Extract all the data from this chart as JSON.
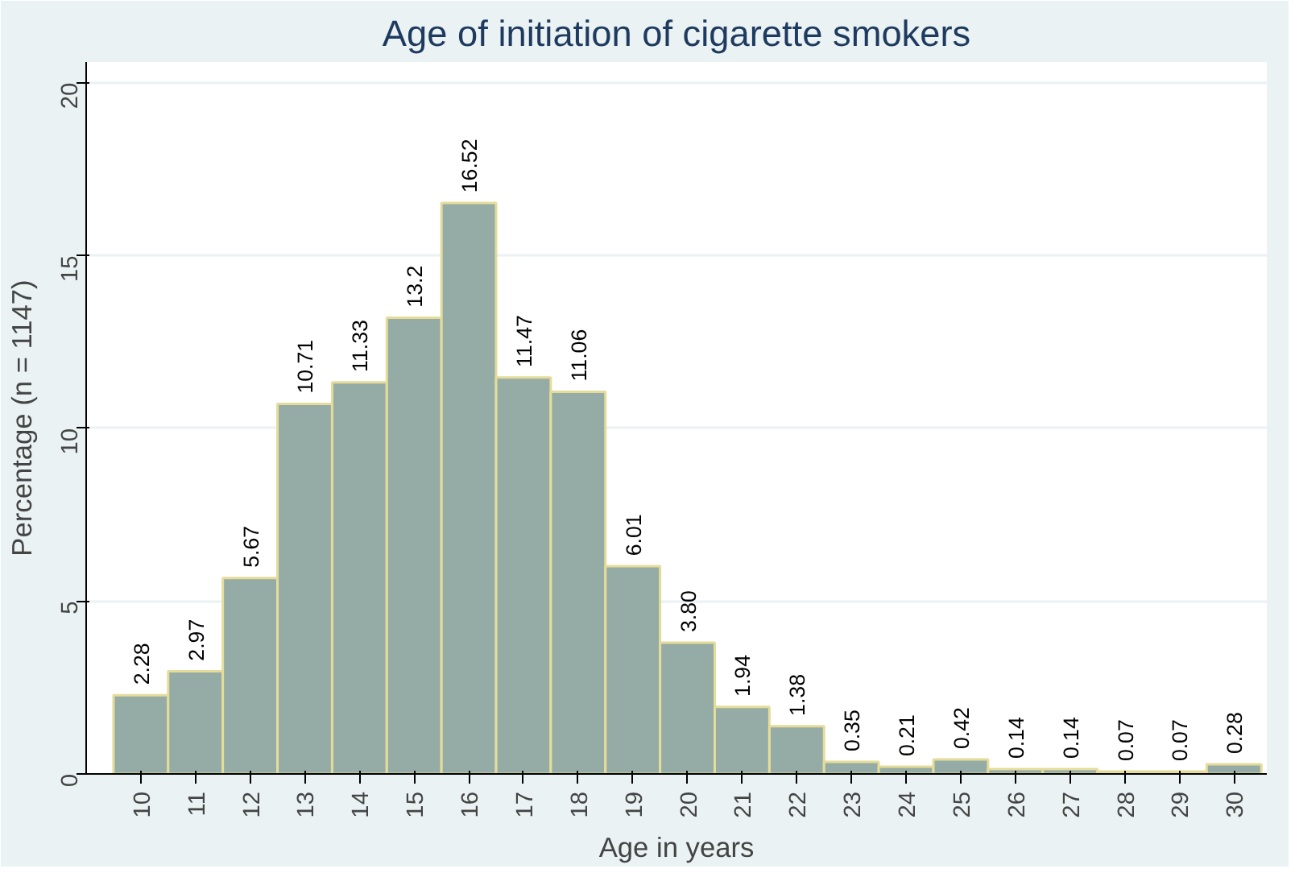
{
  "chart_data": {
    "type": "bar",
    "title": "Age of initiation of cigarette smokers",
    "xlabel": "Age in years",
    "ylabel": "Percentage (n = 1147)",
    "categories": [
      "10",
      "11",
      "12",
      "13",
      "14",
      "15",
      "16",
      "17",
      "18",
      "19",
      "20",
      "21",
      "22",
      "23",
      "24",
      "25",
      "26",
      "27",
      "28",
      "29",
      "30"
    ],
    "values": [
      2.28,
      2.97,
      5.67,
      10.71,
      11.33,
      13.2,
      16.52,
      11.47,
      11.06,
      6.01,
      3.8,
      1.94,
      1.38,
      0.35,
      0.21,
      0.42,
      0.14,
      0.14,
      0.07,
      0.07,
      0.28
    ],
    "value_labels": [
      "2.28",
      "2.97",
      "5.67",
      "10.71",
      "11.33",
      "13.2",
      "16.52",
      "11.47",
      "11.06",
      "6.01",
      "3.80",
      "1.94",
      "1.38",
      "0.35",
      "0.21",
      "0.42",
      "0.14",
      "0.14",
      "0.07",
      "0.07",
      "0.28"
    ],
    "color": "#94aca5",
    "ylim": [
      0,
      20.6
    ],
    "yticks": [
      0,
      5,
      10,
      15,
      20
    ],
    "grid": "y"
  }
}
